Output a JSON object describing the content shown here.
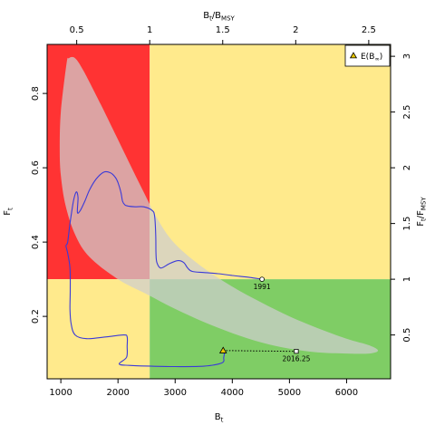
{
  "chart_data": {
    "type": "line",
    "x_axis": {
      "label_main": "B",
      "label_sub": "t",
      "range": [
        760,
        6770
      ],
      "ticks": [
        1000,
        2000,
        3000,
        4000,
        5000,
        6000
      ],
      "tick_labels": [
        "1000",
        "2000",
        "3000",
        "4000",
        "5000",
        "6000"
      ]
    },
    "y_axis": {
      "label_main": "F",
      "label_sub": "t",
      "range": [
        0.032,
        0.932
      ],
      "ticks": [
        0.2,
        0.4,
        0.6,
        0.8
      ],
      "tick_labels": [
        "0.2",
        "0.4",
        "0.6",
        "0.8"
      ]
    },
    "top_axis": {
      "label_main": "B",
      "label_sub": "t",
      "label_mid": "/B",
      "label_sub2": "MSY",
      "ticks": [
        0.5,
        1,
        1.5,
        2,
        2.5
      ],
      "tick_labels": [
        "0.5",
        "1",
        "1.5",
        "2",
        "2.5"
      ]
    },
    "right_axis": {
      "label_main": "F",
      "label_sub": "t",
      "label_mid": "/F",
      "label_sub2": "MSY",
      "ticks": [
        0.5,
        1,
        1.5,
        2,
        2.5,
        3
      ],
      "tick_labels": [
        "0.5",
        "1",
        "1.5",
        "2",
        "2.5",
        "3"
      ]
    },
    "reference_points": {
      "bmsy": 2555,
      "fmsy": 0.3
    },
    "quadrant_colors": {
      "overfishing_overfished": "#ff3333",
      "caution": "#ffea8c",
      "sustainable": "#7fcd65",
      "confidence_region": "#cfcfcf",
      "trajectory": "#3a3ad8"
    },
    "confidence_region": [
      [
        1100,
        0.88
      ],
      [
        1000,
        0.75
      ],
      [
        980,
        0.65
      ],
      [
        1000,
        0.58
      ],
      [
        1080,
        0.5
      ],
      [
        1250,
        0.42
      ],
      [
        1500,
        0.36
      ],
      [
        2000,
        0.3
      ],
      [
        2500,
        0.26
      ],
      [
        3000,
        0.22
      ],
      [
        3500,
        0.185
      ],
      [
        4000,
        0.155
      ],
      [
        4500,
        0.13
      ],
      [
        5000,
        0.113
      ],
      [
        5500,
        0.103
      ],
      [
        6000,
        0.1
      ],
      [
        6400,
        0.1
      ],
      [
        6550,
        0.108
      ],
      [
        6400,
        0.122
      ],
      [
        6000,
        0.14
      ],
      [
        5500,
        0.168
      ],
      [
        5000,
        0.2
      ],
      [
        4500,
        0.238
      ],
      [
        4000,
        0.28
      ],
      [
        3500,
        0.33
      ],
      [
        3000,
        0.395
      ],
      [
        2700,
        0.46
      ],
      [
        2400,
        0.55
      ],
      [
        2050,
        0.66
      ],
      [
        1700,
        0.77
      ],
      [
        1400,
        0.86
      ],
      [
        1250,
        0.895
      ],
      [
        1140,
        0.895
      ]
    ],
    "series": [
      {
        "values": [
          [
            4520,
            0.3
          ],
          [
            4300,
            0.305
          ],
          [
            4000,
            0.31
          ],
          [
            3750,
            0.315
          ],
          [
            3500,
            0.318
          ],
          [
            3300,
            0.321
          ],
          [
            3220,
            0.33
          ],
          [
            3150,
            0.345
          ],
          [
            3050,
            0.35
          ],
          [
            2900,
            0.342
          ],
          [
            2750,
            0.33
          ],
          [
            2680,
            0.345
          ],
          [
            2665,
            0.37
          ],
          [
            2660,
            0.42
          ],
          [
            2640,
            0.47
          ],
          [
            2600,
            0.485
          ],
          [
            2450,
            0.495
          ],
          [
            2300,
            0.495
          ],
          [
            2180,
            0.497
          ],
          [
            2120,
            0.5
          ],
          [
            2080,
            0.51
          ],
          [
            2050,
            0.535
          ],
          [
            2000,
            0.56
          ],
          [
            1950,
            0.575
          ],
          [
            1860,
            0.587
          ],
          [
            1750,
            0.588
          ],
          [
            1620,
            0.57
          ],
          [
            1500,
            0.54
          ],
          [
            1420,
            0.51
          ],
          [
            1340,
            0.485
          ],
          [
            1290,
            0.48
          ],
          [
            1300,
            0.52
          ],
          [
            1270,
            0.535
          ],
          [
            1220,
            0.51
          ],
          [
            1160,
            0.45
          ],
          [
            1120,
            0.4
          ],
          [
            1090,
            0.39
          ],
          [
            1120,
            0.37
          ],
          [
            1160,
            0.33
          ],
          [
            1165,
            0.27
          ],
          [
            1160,
            0.22
          ],
          [
            1180,
            0.18
          ],
          [
            1250,
            0.15
          ],
          [
            1450,
            0.14
          ],
          [
            1800,
            0.145
          ],
          [
            2100,
            0.15
          ],
          [
            2160,
            0.145
          ],
          [
            2160,
            0.12
          ],
          [
            2150,
            0.09
          ],
          [
            2020,
            0.072
          ],
          [
            2200,
            0.068
          ],
          [
            2600,
            0.066
          ],
          [
            3000,
            0.065
          ],
          [
            3500,
            0.066
          ],
          [
            3820,
            0.075
          ],
          [
            3850,
            0.09
          ],
          [
            3870,
            0.108
          ]
        ],
        "projection": [
          [
            3840,
            0.108
          ],
          [
            4500,
            0.107
          ],
          [
            5120,
            0.106
          ]
        ]
      }
    ],
    "annotations": [
      {
        "text": "1991",
        "x": 4520,
        "y": 0.3
      },
      {
        "text": "2016.25",
        "x": 5120,
        "y": 0.106
      }
    ],
    "legend": {
      "position": "top-right",
      "label_main": "E(B",
      "label_sub": "∞",
      "label_end": ")"
    },
    "equilibrium": {
      "x": 3840,
      "y": 0.108
    }
  }
}
